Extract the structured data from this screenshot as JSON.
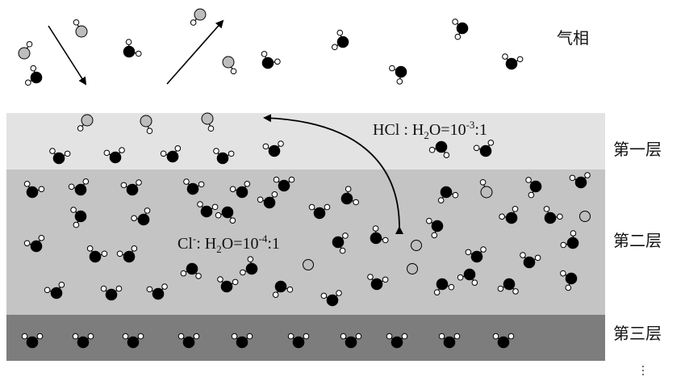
{
  "labels": {
    "gas_phase": "气相",
    "layer1": "第一层",
    "layer2": "第二层",
    "layer3": "第三层"
  },
  "ratios": {
    "hcl": {
      "prefix": "HCl : H",
      "sub": "2",
      "mid": "O=10",
      "sup": "-3",
      "suffix": ":1"
    },
    "cl": {
      "prefix": "Cl",
      "sup1": "-",
      "mid1": ": H",
      "sub": "2",
      "mid2": "O=10",
      "sup2": "-4",
      "suffix": ":1"
    }
  },
  "colors": {
    "layer1": "#e3e3e3",
    "layer2": "#c4c4c4",
    "layer3": "#7d7d7d",
    "oxygen": "#000000",
    "chlorine": "#bdbdbd",
    "hydrogen": "#ffffff"
  }
}
